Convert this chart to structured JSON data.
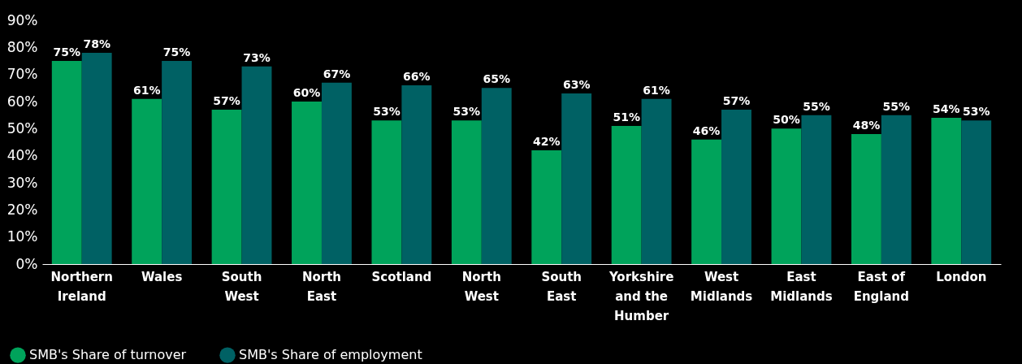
{
  "chart_data": {
    "type": "bar",
    "categories": [
      "Northern Ireland",
      "Wales",
      "South West",
      "North East",
      "Scotland",
      "North West",
      "South East",
      "Yorkshire and the Humber",
      "West Midlands",
      "East Midlands",
      "East of England",
      "London"
    ],
    "series": [
      {
        "name": "SMB's Share of turnover",
        "color": "#00a35b",
        "values": [
          75,
          61,
          57,
          60,
          53,
          53,
          42,
          51,
          46,
          50,
          48,
          54
        ],
        "value_labels": [
          "75%",
          "61%",
          "57%",
          "60%",
          "53%",
          "53%",
          "42%",
          "51%",
          "46%",
          "50%",
          "48%",
          "54%"
        ]
      },
      {
        "name": "SMB's Share of employment",
        "color": "#006164",
        "values": [
          78,
          75,
          73,
          67,
          66,
          65,
          63,
          61,
          57,
          55,
          55,
          53
        ],
        "value_labels": [
          "78%",
          "75%",
          "73%",
          "67%",
          "66%",
          "65%",
          "63%",
          "61%",
          "57%",
          "55%",
          "55%",
          "53%"
        ]
      }
    ],
    "ylim": [
      0,
      90
    ],
    "yticks": [
      {
        "value": 0,
        "label": "0%"
      },
      {
        "value": 10,
        "label": "10%"
      },
      {
        "value": 20,
        "label": "20%"
      },
      {
        "value": 30,
        "label": "30%"
      },
      {
        "value": 40,
        "label": "40%"
      },
      {
        "value": 50,
        "label": "50%"
      },
      {
        "value": 60,
        "label": "60%"
      },
      {
        "value": 70,
        "label": "70%"
      },
      {
        "value": 80,
        "label": "80%"
      },
      {
        "value": 90,
        "label": "90%"
      }
    ],
    "grid": false,
    "legend": "bottom left"
  }
}
